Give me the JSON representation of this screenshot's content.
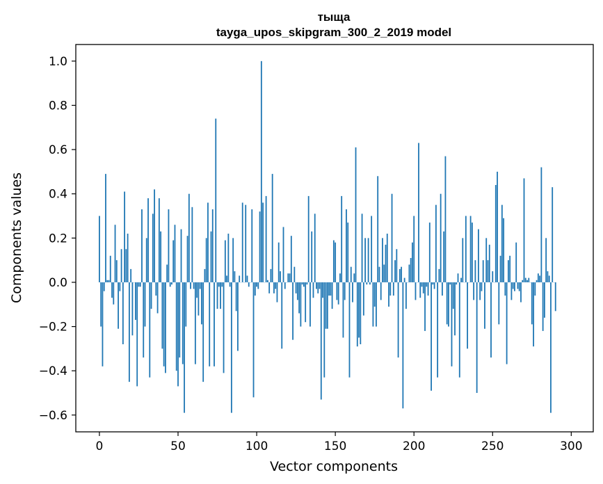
{
  "chart_data": {
    "type": "bar",
    "title_line1": "тыща",
    "title_line2": "tayga_upos_skipgram_300_2_2019 model",
    "xlabel": "Vector components",
    "ylabel": "Components values",
    "xlim": [
      -15,
      314
    ],
    "ylim": [
      -0.676,
      1.075
    ],
    "xticks": [
      0,
      50,
      100,
      150,
      200,
      250,
      300
    ],
    "yticks": [
      -0.6,
      -0.4,
      -0.2,
      0.0,
      0.2,
      0.4,
      0.6,
      0.8,
      1.0
    ],
    "ytick_labels": [
      "−0.6",
      "−0.4",
      "−0.2",
      "0.0",
      "0.2",
      "0.4",
      "0.6",
      "0.8",
      "1.0"
    ],
    "bar_color": "#1f77b4",
    "grid": false,
    "values": [
      0.3,
      -0.2,
      -0.38,
      -0.04,
      0.49,
      0.01,
      0.01,
      0.12,
      -0.07,
      -0.1,
      0.26,
      0.1,
      -0.21,
      -0.04,
      0.15,
      -0.28,
      0.41,
      0.15,
      0.22,
      -0.45,
      0.06,
      -0.24,
      0.0,
      -0.17,
      -0.47,
      -0.02,
      -0.02,
      0.33,
      -0.34,
      -0.2,
      0.2,
      0.38,
      -0.43,
      -0.12,
      0.31,
      0.42,
      -0.06,
      -0.14,
      0.38,
      0.23,
      -0.3,
      -0.38,
      -0.41,
      0.08,
      0.33,
      -0.02,
      -0.01,
      0.19,
      0.26,
      -0.4,
      -0.47,
      -0.34,
      0.24,
      -0.37,
      -0.59,
      -0.2,
      0.21,
      0.4,
      -0.03,
      0.34,
      -0.03,
      -0.37,
      -0.07,
      -0.15,
      -0.03,
      -0.19,
      -0.45,
      0.06,
      0.2,
      0.36,
      -0.38,
      0.23,
      0.33,
      -0.38,
      0.74,
      -0.12,
      -0.02,
      -0.12,
      -0.02,
      -0.41,
      0.19,
      0.03,
      0.22,
      -0.02,
      -0.59,
      0.2,
      0.05,
      -0.13,
      -0.31,
      0.03,
      0.0,
      0.36,
      0.0,
      0.35,
      0.03,
      -0.02,
      0.0,
      0.33,
      -0.52,
      -0.06,
      -0.02,
      -0.03,
      0.32,
      1.0,
      0.36,
      0.0,
      0.39,
      0.01,
      -0.05,
      0.06,
      0.49,
      -0.05,
      -0.03,
      -0.09,
      0.18,
      0.05,
      -0.3,
      0.25,
      -0.03,
      0.0,
      0.04,
      0.04,
      0.21,
      -0.26,
      0.07,
      -0.05,
      -0.08,
      -0.14,
      -0.2,
      -0.01,
      -0.02,
      -0.18,
      -0.01,
      0.39,
      -0.2,
      0.23,
      -0.07,
      0.31,
      -0.03,
      -0.05,
      -0.03,
      -0.53,
      -0.07,
      -0.43,
      -0.21,
      -0.21,
      -0.06,
      -0.06,
      -0.12,
      0.19,
      0.18,
      -0.08,
      -0.1,
      0.04,
      0.39,
      -0.25,
      -0.08,
      0.33,
      0.27,
      -0.43,
      0.07,
      -0.09,
      0.04,
      0.61,
      -0.29,
      -0.25,
      -0.28,
      0.31,
      -0.15,
      0.2,
      -0.01,
      0.2,
      -0.01,
      0.3,
      -0.2,
      -0.11,
      -0.2,
      0.48,
      0.07,
      -0.08,
      0.2,
      0.08,
      0.17,
      0.22,
      -0.11,
      -0.06,
      0.4,
      -0.06,
      0.1,
      0.15,
      -0.34,
      0.06,
      0.07,
      -0.57,
      0.02,
      -0.12,
      0.0,
      0.08,
      0.11,
      0.18,
      0.3,
      -0.08,
      0.0,
      0.63,
      -0.07,
      -0.02,
      -0.05,
      -0.22,
      -0.02,
      -0.06,
      0.27,
      -0.49,
      -0.01,
      -0.03,
      0.35,
      -0.43,
      0.06,
      0.4,
      -0.06,
      0.23,
      0.57,
      -0.19,
      -0.2,
      -0.01,
      -0.38,
      -0.12,
      -0.24,
      -0.01,
      0.04,
      -0.43,
      0.02,
      0.2,
      0.0,
      0.3,
      -0.3,
      0.0,
      0.3,
      0.27,
      -0.08,
      0.1,
      -0.5,
      0.24,
      -0.08,
      -0.04,
      0.1,
      -0.21,
      0.2,
      0.1,
      0.17,
      -0.34,
      0.05,
      0.0,
      0.44,
      0.5,
      -0.19,
      0.12,
      0.35,
      0.29,
      -0.06,
      -0.37,
      0.1,
      0.12,
      -0.08,
      -0.03,
      -0.04,
      0.18,
      -0.03,
      -0.04,
      -0.09,
      0.01,
      0.47,
      0.02,
      0.01,
      0.02,
      0.0,
      -0.19,
      -0.29,
      -0.06,
      0.01,
      0.04,
      0.03,
      0.52,
      -0.22,
      -0.16,
      0.2,
      0.05,
      0.03,
      -0.59,
      0.43,
      0.0,
      -0.13
    ]
  }
}
